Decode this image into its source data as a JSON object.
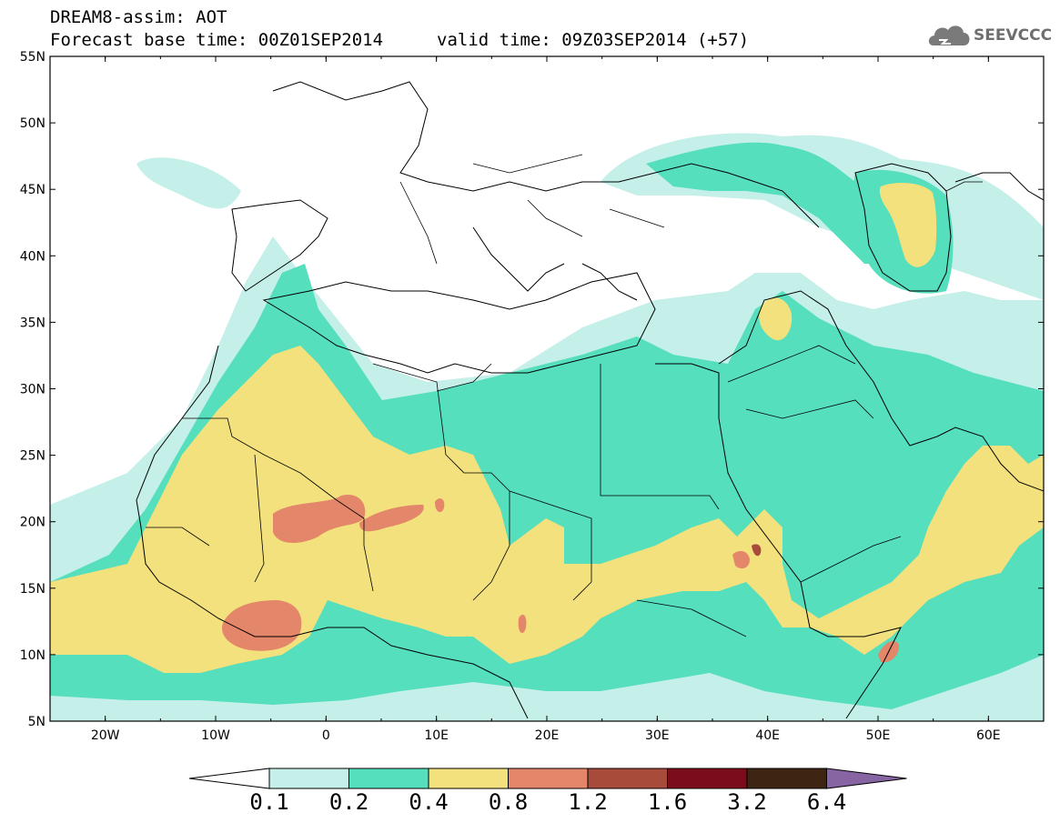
{
  "title": {
    "line1": "DREAM8-assim: AOT",
    "base_time": "Forecast base time: 00Z01SEP2014",
    "valid_time": "valid time: 09Z03SEP2014 (+57)"
  },
  "logo": {
    "text": "SEEVCCC",
    "icon": "cloud-icon"
  },
  "axes": {
    "lat_labels": [
      "5N",
      "10N",
      "15N",
      "20N",
      "25N",
      "30N",
      "35N",
      "40N",
      "45N",
      "50N",
      "55N"
    ],
    "lon_labels": [
      "20W",
      "10W",
      "0",
      "10E",
      "20E",
      "30E",
      "40E",
      "50E",
      "60E"
    ],
    "lon_range": [
      -25,
      65
    ],
    "lat_range": [
      5,
      55
    ]
  },
  "legend": {
    "labels": [
      "0.1",
      "0.2",
      "0.4",
      "0.8",
      "1.2",
      "1.6",
      "3.2",
      "6.4"
    ],
    "colors": [
      "#ffffff",
      "#c5efe9",
      "#55dfbd",
      "#f2e17c",
      "#e3866a",
      "#a94b3a",
      "#7a0c1c",
      "#3e2513",
      "#8765a3"
    ]
  },
  "colors": {
    "class_01_02": "#c5efe9",
    "class_02_04": "#55dfbd",
    "class_04_08": "#f2e17c",
    "class_08_12": "#e3866a",
    "class_12_16": "#a94b3a"
  }
}
